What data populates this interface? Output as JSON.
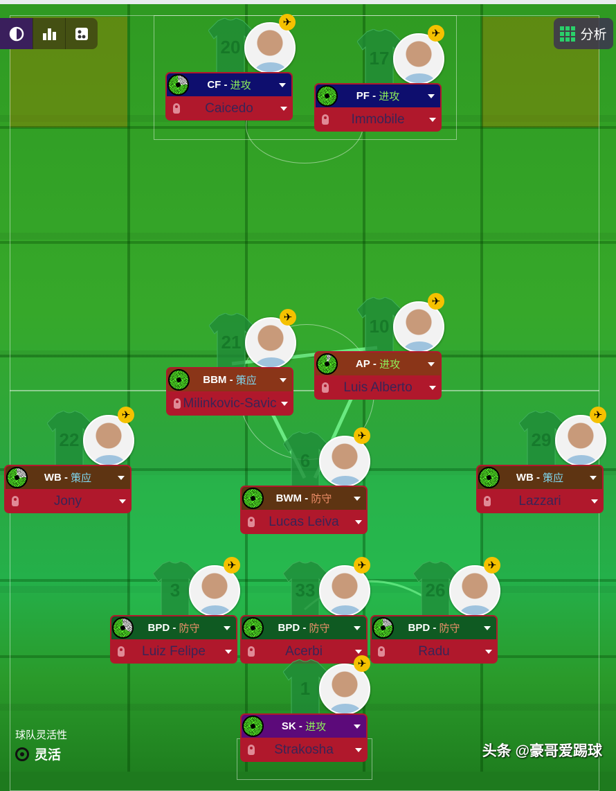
{
  "toolbar": {
    "buttons": [
      {
        "icon": "contrast-icon"
      },
      {
        "icon": "bar-chart-icon"
      },
      {
        "icon": "tactics-board-icon"
      }
    ],
    "analysis_label": "分析",
    "analysis_icon": "grid-icon"
  },
  "team_flexibility": {
    "label": "球队灵活性",
    "value": "灵活"
  },
  "watermark": "头条 @豪哥爱踢球",
  "colors": {
    "attack_duty": "#8ef05a",
    "support_duty": "#7fd8f0",
    "defend_duty": "#f0906a",
    "name_row": "#b0182c",
    "name_text": "#3a2456",
    "plane_badge": "#f5c100"
  },
  "players": [
    {
      "role": "CF",
      "duty": "进攻",
      "duty_type": "attack",
      "name": "Caicedo",
      "number": "20",
      "condition": 0.75,
      "role_color": "#0e0e6e"
    },
    {
      "role": "PF",
      "duty": "进攻",
      "duty_type": "attack",
      "name": "Immobile",
      "number": "17",
      "condition": 1,
      "role_color": "#0e0e6e"
    },
    {
      "role": "BBM",
      "duty": "策应",
      "duty_type": "support",
      "name": "Milinkovic-Savic",
      "number": "21",
      "condition": 1,
      "role_color": "#8a3518"
    },
    {
      "role": "AP",
      "duty": "进攻",
      "duty_type": "attack",
      "name": "Luis Alberto",
      "number": "10",
      "condition": 0.92,
      "role_color": "#8a3518"
    },
    {
      "role": "WB",
      "duty": "策应",
      "duty_type": "support",
      "name": "Jony",
      "number": "22",
      "condition": 0.75,
      "role_color": "#5e3412"
    },
    {
      "role": "BWM",
      "duty": "防守",
      "duty_type": "defend",
      "name": "Lucas Leiva",
      "number": "6",
      "condition": 1,
      "role_color": "#5e3412"
    },
    {
      "role": "WB",
      "duty": "策应",
      "duty_type": "support",
      "name": "Lazzari",
      "number": "29",
      "condition": 1,
      "role_color": "#5e3412"
    },
    {
      "role": "BPD",
      "duty": "防守",
      "duty_type": "defend",
      "name": "Luiz Felipe",
      "number": "3",
      "condition": 0.67,
      "role_color": "#0f5a22"
    },
    {
      "role": "BPD",
      "duty": "防守",
      "duty_type": "defend",
      "name": "Acerbi",
      "number": "33",
      "condition": 1,
      "role_color": "#0f5a22"
    },
    {
      "role": "BPD",
      "duty": "防守",
      "duty_type": "defend",
      "name": "Radu",
      "number": "26",
      "condition": 0.8,
      "role_color": "#0f5a22"
    },
    {
      "role": "SK",
      "duty": "进攻",
      "duty_type": "attack",
      "name": "Strakosha",
      "number": "1",
      "condition": 1,
      "role_color": "#5c0a7a"
    }
  ]
}
